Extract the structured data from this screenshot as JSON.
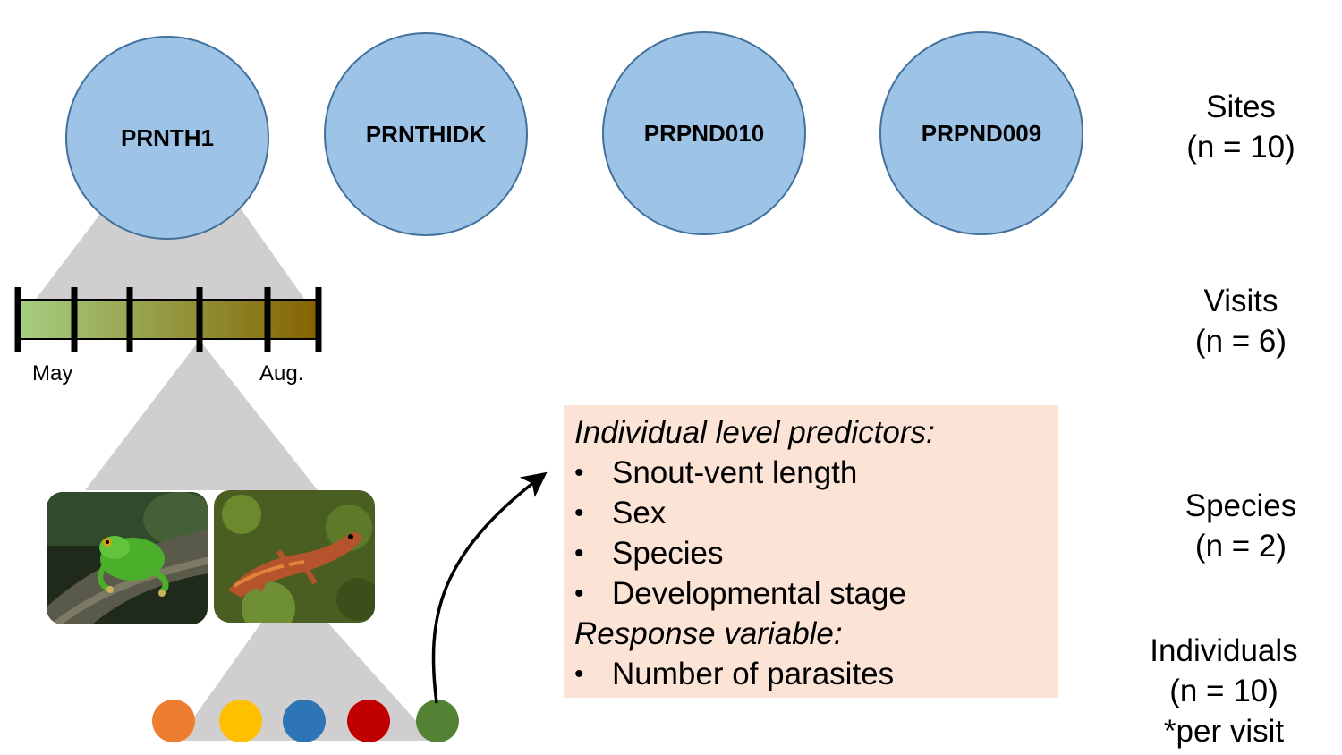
{
  "sites": [
    {
      "label": "PRNTH1"
    },
    {
      "label": "PRNTHIDK"
    },
    {
      "label": "PRPND010"
    },
    {
      "label": "PRPND009"
    }
  ],
  "timeline": {
    "start_label": "May",
    "end_label": "Aug.",
    "visit_count": 6,
    "gradient_start": "#a7cf84",
    "gradient_end": "#846300"
  },
  "species_photos": [
    {
      "icon": "tree-frog-photo"
    },
    {
      "icon": "newt-photo"
    }
  ],
  "individuals": {
    "colors": [
      "#ed7d31",
      "#ffc000",
      "#2e75b6",
      "#c00000",
      "#548235"
    ]
  },
  "levels": {
    "sites": {
      "name": "Sites",
      "n": "(n = 10)"
    },
    "visits": {
      "name": "Visits",
      "n": "(n = 6)"
    },
    "species": {
      "name": "Species",
      "n": "(n = 2)"
    },
    "individuals": {
      "name": "Individuals",
      "n": "(n = 10)",
      "note": "*per visit"
    }
  },
  "predictors_box": {
    "predictors_heading": "Individual level predictors:",
    "predictors": [
      "Snout-vent length",
      "Sex",
      "Species",
      "Developmental stage"
    ],
    "response_heading": "Response variable:",
    "responses": [
      "Number of parasites"
    ]
  },
  "colors": {
    "site_fill": "#9dc3e6",
    "site_stroke": "#41719c",
    "funnel": "#d0cece",
    "box_fill": "#fbe4d6"
  }
}
